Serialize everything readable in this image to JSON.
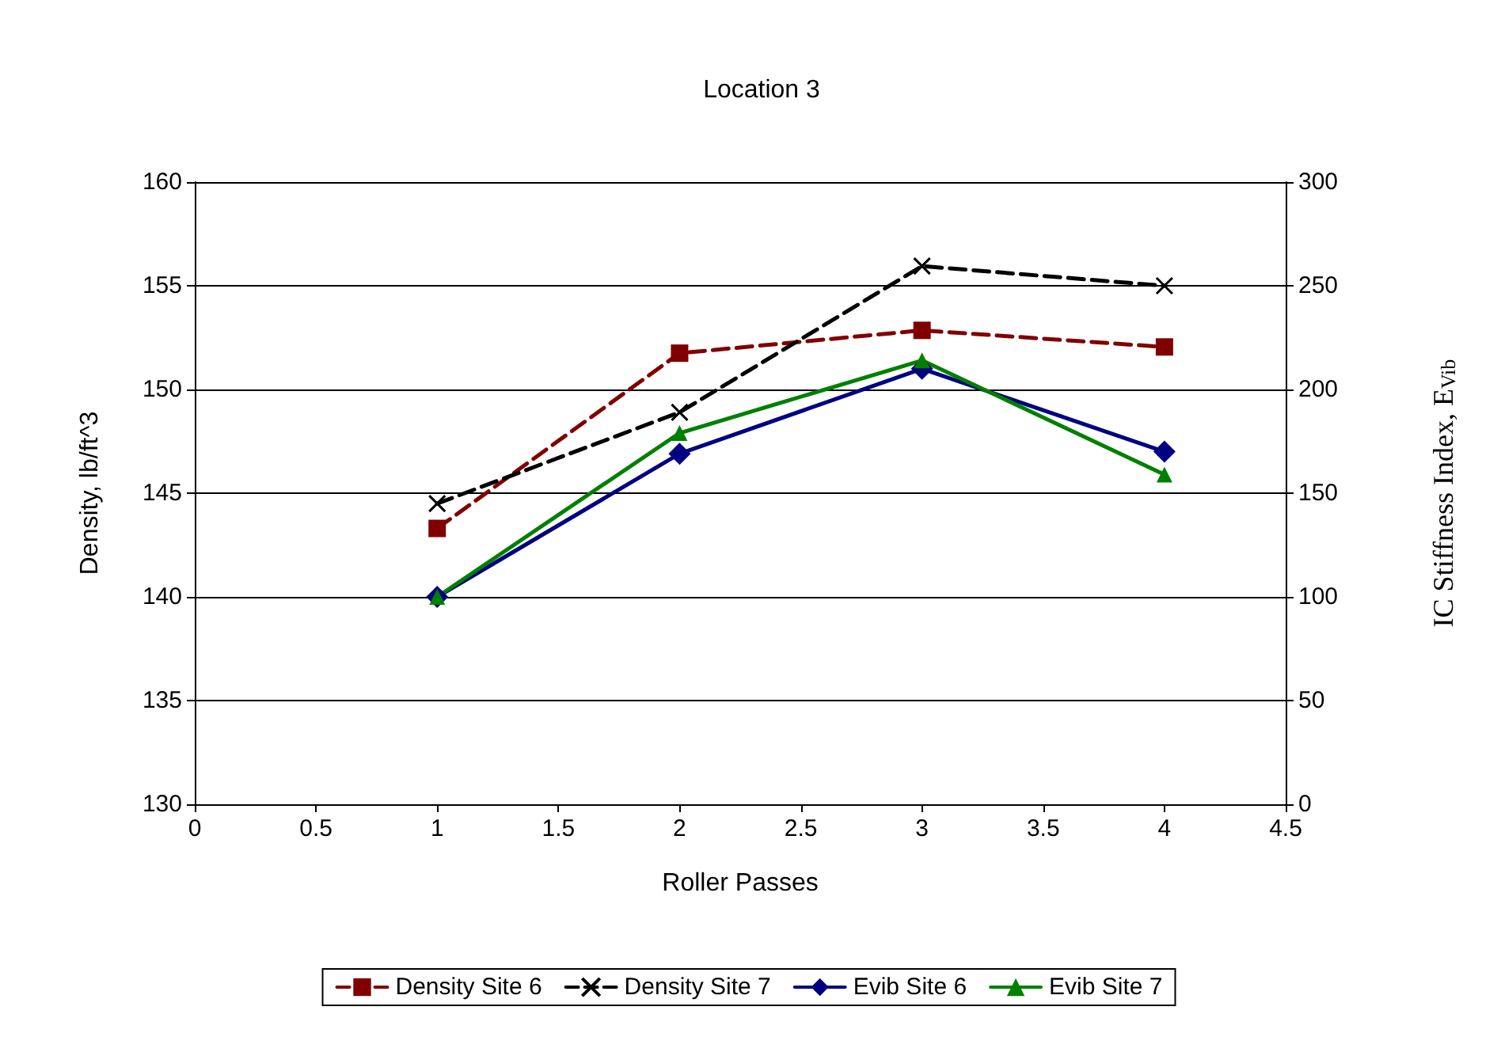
{
  "chart_data": {
    "type": "line",
    "title": "Location 3",
    "xlabel": "Roller Passes",
    "ylabel": "Density, lb/ft^3",
    "y2label": "IC Stiffness Index, E$_{Vib}$",
    "xlim": [
      0,
      4.5
    ],
    "xticks": [
      0,
      0.5,
      1,
      1.5,
      2,
      2.5,
      3,
      3.5,
      4,
      4.5
    ],
    "ylim": [
      130,
      160
    ],
    "yticks": [
      130,
      135,
      140,
      145,
      150,
      155,
      160
    ],
    "y2lim": [
      0,
      300
    ],
    "y2ticks": [
      0,
      50,
      100,
      150,
      200,
      250,
      300
    ],
    "grid": "y",
    "legend": "bottom",
    "series": [
      {
        "name": "Density Site 6",
        "color": "#800000",
        "x": [
          1,
          2,
          3,
          4
        ],
        "values": [
          143.3,
          151.75,
          152.85,
          152.05
        ],
        "marker": "square",
        "line_style": "dashed"
      },
      {
        "name": "Density Site 7",
        "color": "#000000",
        "x": [
          1,
          2,
          3,
          4
        ],
        "values": [
          144.5,
          148.9,
          155.95,
          155
        ],
        "marker": "cross",
        "line_style": "dashed"
      },
      {
        "name": "Evib Site 6",
        "color": "#000080",
        "x": [
          1,
          2,
          3,
          4
        ],
        "values": [
          100,
          169,
          210,
          170
        ],
        "marker": "diamond",
        "line_style": "solid",
        "axis": "y2"
      },
      {
        "name": "Evib Site 7",
        "color": "#008000",
        "x": [
          1,
          2,
          3,
          4
        ],
        "values": [
          100,
          179,
          214,
          159
        ],
        "marker": "triangle",
        "line_style": "solid",
        "axis": "y2"
      }
    ]
  }
}
